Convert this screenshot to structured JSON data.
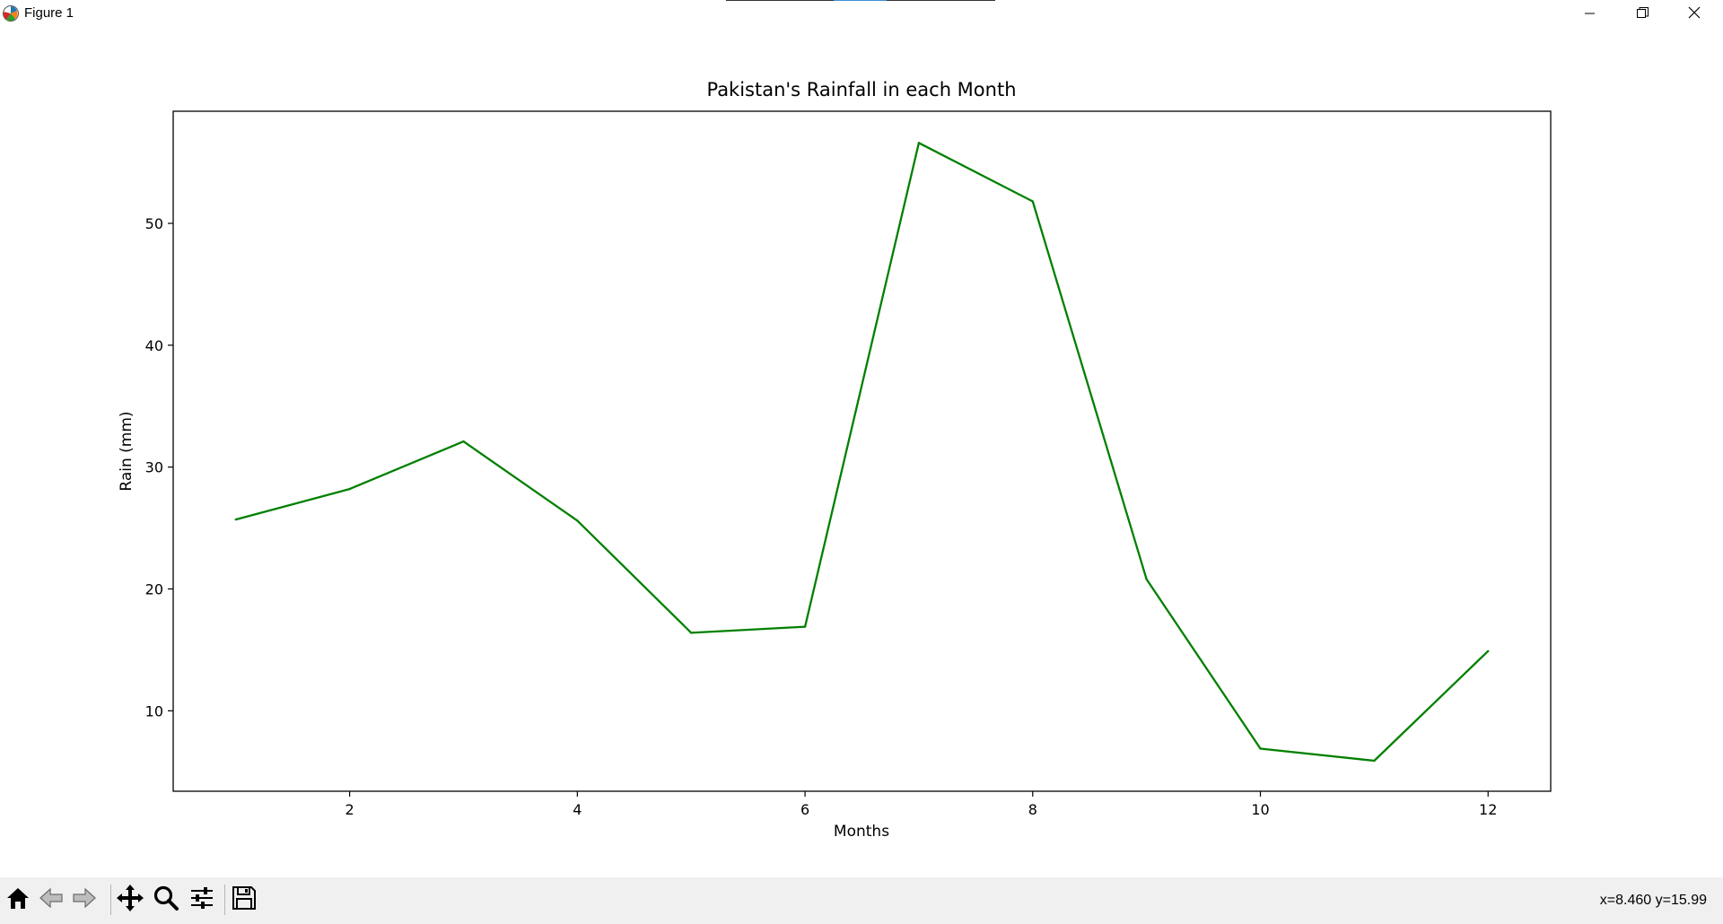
{
  "window": {
    "title": "Figure 1",
    "controls": [
      "minimize-icon",
      "restore-icon",
      "close-icon"
    ]
  },
  "toolbar": {
    "buttons": [
      "home-icon",
      "back-arrow-icon",
      "forward-arrow-icon",
      "pan-icon",
      "zoom-icon",
      "configure-subplots-icon",
      "save-icon"
    ],
    "coordinates": "x=8.460 y=15.99"
  },
  "colors": {
    "line": "#008000",
    "toolbar_bg": "#f0f0f0"
  },
  "chart_data": {
    "type": "line",
    "title": "Pakistan's Rainfall in each Month",
    "xlabel": "Months",
    "ylabel": "Rain (mm)",
    "x": [
      1,
      2,
      3,
      4,
      5,
      6,
      7,
      8,
      9,
      10,
      11,
      12
    ],
    "values": [
      25.7,
      28.2,
      32.1,
      25.6,
      16.4,
      16.9,
      56.6,
      51.8,
      20.8,
      6.9,
      5.9,
      14.9
    ],
    "xlim": [
      0.45,
      12.55
    ],
    "ylim": [
      3.4,
      59.2
    ],
    "xticks": [
      2,
      4,
      6,
      8,
      10,
      12
    ],
    "xtick_labels": [
      "2",
      "4",
      "6",
      "8",
      "10",
      "12"
    ],
    "yticks": [
      10,
      20,
      30,
      40,
      50
    ],
    "ytick_labels": [
      "10",
      "20",
      "30",
      "40",
      "50"
    ],
    "grid": false,
    "legend": "none",
    "line_color": "#008000"
  }
}
